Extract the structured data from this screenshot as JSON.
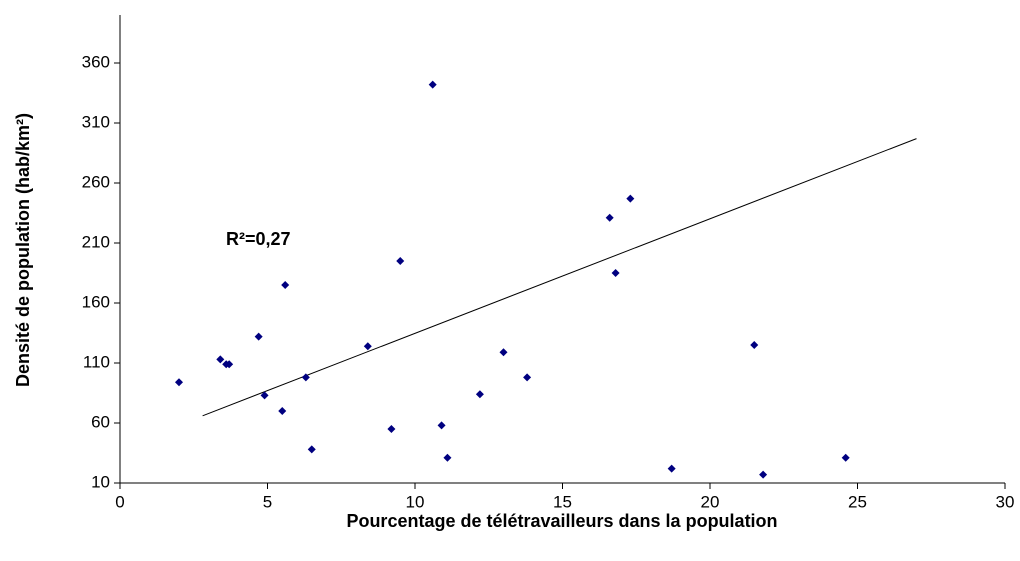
{
  "chart_data": {
    "type": "scatter",
    "xlabel": "Pourcentage de télétravailleurs dans la population",
    "ylabel": "Densité de population (hab/km²)",
    "annotation": "R²=0,27",
    "color": "#000080",
    "series": [
      {
        "x": [
          2.0,
          3.4,
          3.6,
          3.7,
          4.7,
          4.9,
          5.5,
          5.6,
          6.3,
          6.5,
          8.4,
          9.2,
          9.5,
          10.6,
          10.9,
          11.1,
          12.2,
          13.0,
          13.8,
          16.6,
          16.8,
          17.3,
          18.7,
          21.5,
          21.8,
          24.6
        ],
        "values": [
          94,
          113,
          109,
          109,
          132,
          83,
          70,
          175,
          98,
          38,
          124,
          55,
          195,
          342,
          58,
          31,
          84,
          119,
          98,
          231,
          185,
          247,
          22,
          125,
          17,
          31
        ]
      }
    ],
    "trendline": {
      "x": [
        2.8,
        27.0
      ],
      "values": [
        66,
        297
      ]
    },
    "xlim": [
      0,
      30
    ],
    "xticks": [
      0,
      5,
      10,
      15,
      20,
      25,
      30
    ],
    "ylim": [
      10,
      400
    ],
    "yticks": [
      10,
      60,
      110,
      160,
      210,
      260,
      310,
      360
    ],
    "grid": false
  }
}
